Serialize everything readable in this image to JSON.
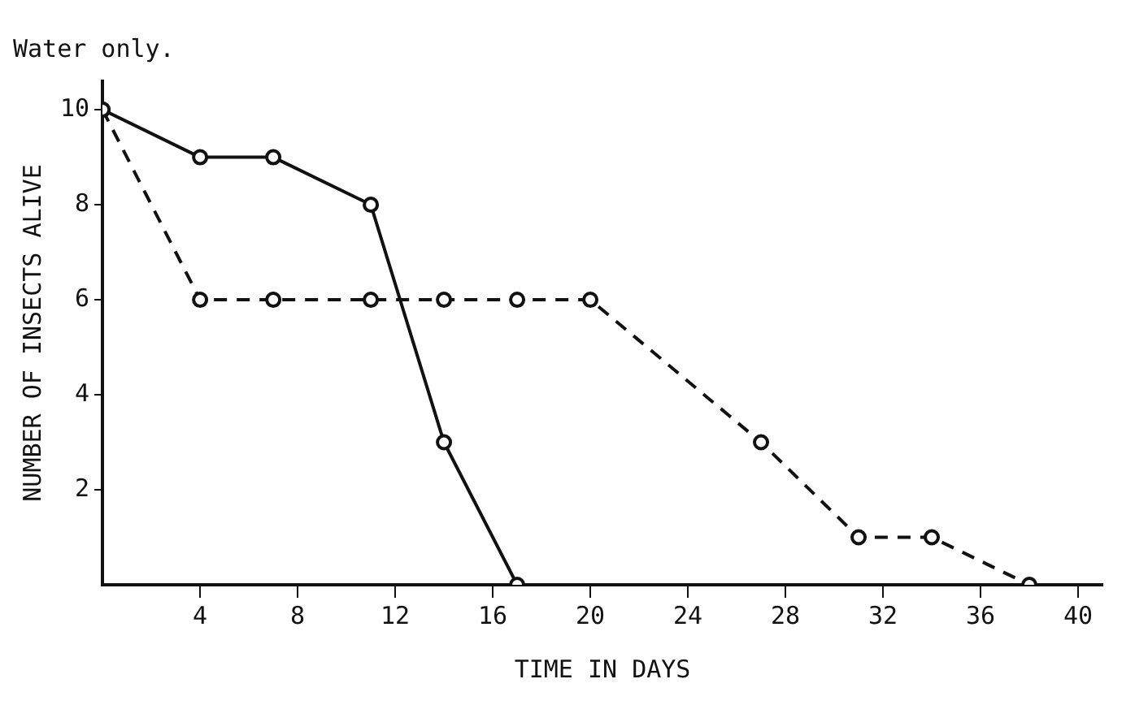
{
  "chart_data": {
    "type": "line",
    "title": "Water only.",
    "xlabel": "TIME IN DAYS",
    "ylabel": "NUMBER OF INSECTS ALIVE",
    "xlim": [
      0,
      41
    ],
    "xticks": [
      4,
      8,
      12,
      16,
      20,
      24,
      28,
      32,
      36,
      40
    ],
    "ylim": [
      0,
      10.6
    ],
    "yticks": [
      2,
      4,
      6,
      8,
      10
    ],
    "grid": false,
    "legend": false,
    "marker": "circle",
    "series": [
      {
        "color": "#111111",
        "line_style": "solid",
        "x": [
          0,
          4,
          7,
          11,
          14,
          17
        ],
        "values": [
          10,
          9,
          9,
          8,
          3,
          0
        ]
      },
      {
        "color": "#111111",
        "line_style": "dashed",
        "x": [
          0,
          4,
          7,
          11,
          14,
          17,
          20,
          27,
          31,
          34,
          38
        ],
        "values": [
          10,
          6,
          6,
          6,
          6,
          6,
          6,
          3,
          1,
          1,
          0
        ]
      }
    ]
  }
}
